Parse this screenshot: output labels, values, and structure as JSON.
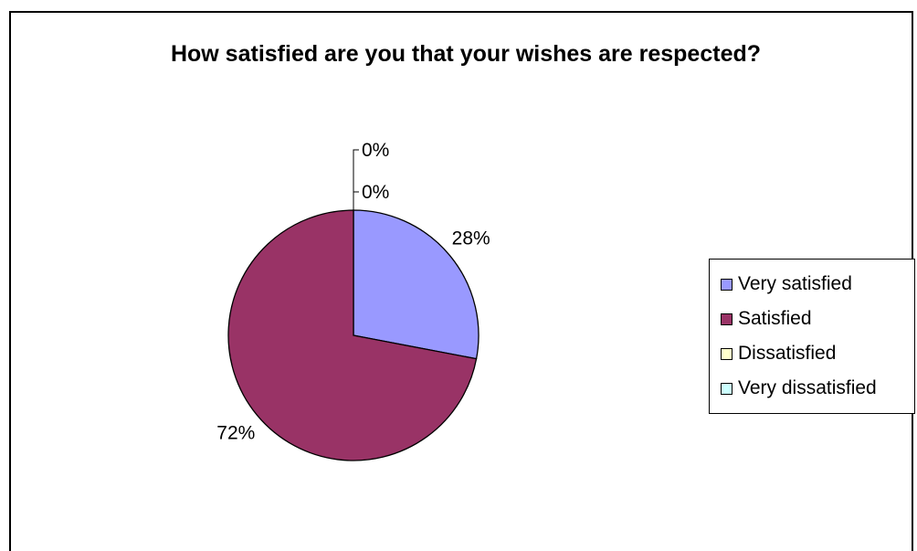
{
  "chart_data": {
    "type": "pie",
    "title": "How satisfied are you that your wishes are respected?",
    "categories": [
      "Very satisfied",
      "Satisfied",
      "Dissatisfied",
      "Very dissatisfied"
    ],
    "values": [
      28,
      72,
      0,
      0
    ],
    "data_labels": [
      "28%",
      "72%",
      "0%",
      "0%"
    ],
    "colors": [
      "#9999ff",
      "#993366",
      "#ffffcc",
      "#ccffff"
    ],
    "legend": "right"
  }
}
